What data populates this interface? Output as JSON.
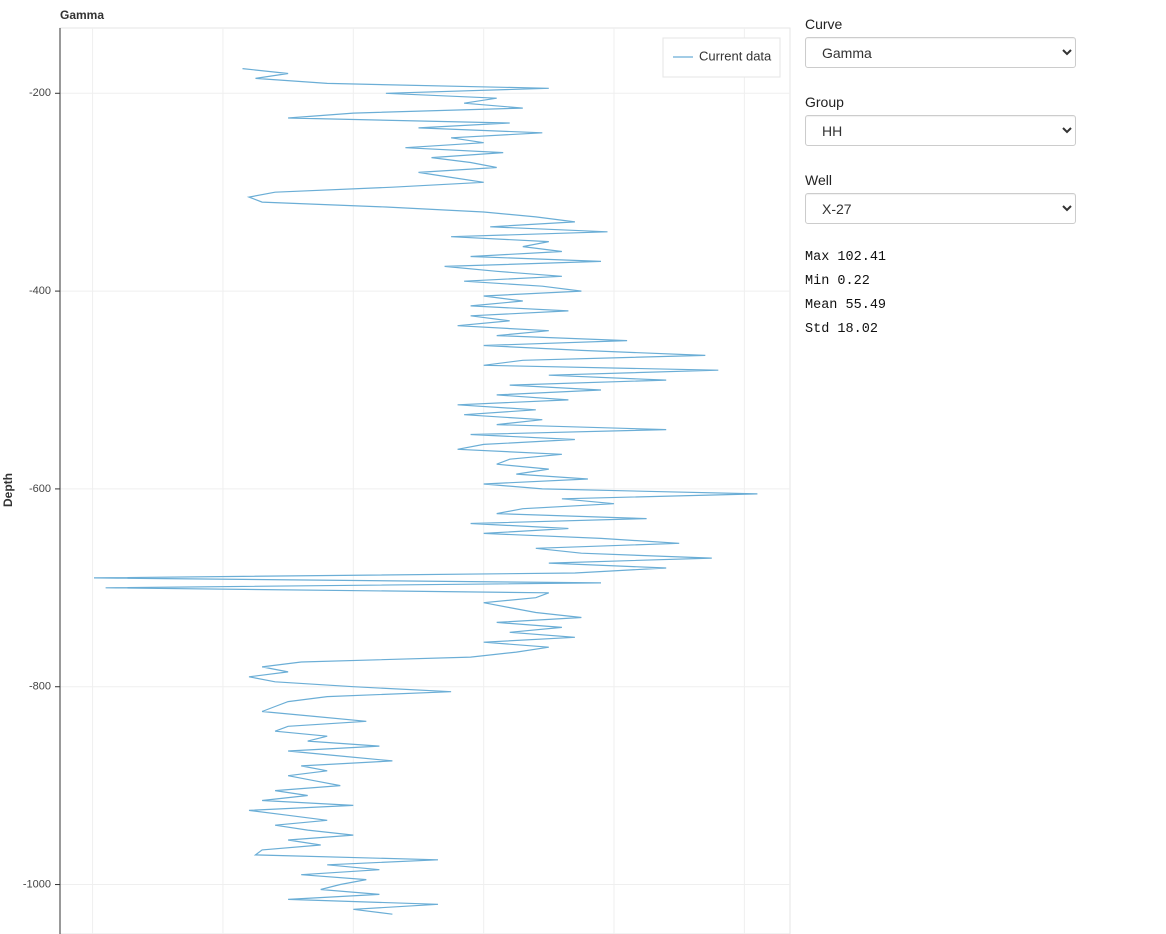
{
  "chart_data": {
    "type": "line",
    "title": "Gamma",
    "ylabel": "Depth",
    "xlim": [
      -5,
      107
    ],
    "xticks": [
      0,
      20,
      40,
      60,
      80,
      100
    ],
    "ylim": [
      -1050,
      -134
    ],
    "yticks": [
      -200,
      -400,
      -600,
      -800,
      -1000
    ],
    "grid": true,
    "legend": "upper right",
    "y": [
      -175,
      -180,
      -185,
      -190,
      -195,
      -200,
      -205,
      -210,
      -215,
      -220,
      -225,
      -230,
      -235,
      -240,
      -245,
      -250,
      -255,
      -260,
      -265,
      -270,
      -275,
      -280,
      -285,
      -290,
      -295,
      -300,
      -305,
      -310,
      -315,
      -320,
      -325,
      -330,
      -335,
      -340,
      -345,
      -350,
      -355,
      -360,
      -365,
      -370,
      -375,
      -380,
      -385,
      -390,
      -395,
      -400,
      -405,
      -410,
      -415,
      -420,
      -425,
      -430,
      -435,
      -440,
      -445,
      -450,
      -455,
      -460,
      -465,
      -470,
      -475,
      -480,
      -485,
      -490,
      -495,
      -500,
      -505,
      -510,
      -515,
      -520,
      -525,
      -530,
      -535,
      -540,
      -545,
      -550,
      -555,
      -560,
      -565,
      -570,
      -575,
      -580,
      -585,
      -590,
      -595,
      -600,
      -605,
      -610,
      -615,
      -620,
      -625,
      -630,
      -635,
      -640,
      -645,
      -650,
      -655,
      -660,
      -665,
      -670,
      -675,
      -680,
      -685,
      -690,
      -695,
      -700,
      -705,
      -710,
      -715,
      -720,
      -725,
      -730,
      -735,
      -740,
      -745,
      -750,
      -755,
      -760,
      -765,
      -770,
      -775,
      -780,
      -785,
      -790,
      -795,
      -800,
      -805,
      -810,
      -815,
      -820,
      -825,
      -830,
      -835,
      -840,
      -845,
      -850,
      -855,
      -860,
      -865,
      -870,
      -875,
      -880,
      -885,
      -890,
      -895,
      -900,
      -905,
      -910,
      -915,
      -920,
      -925,
      -930,
      -935,
      -940,
      -945,
      -950,
      -955,
      -960,
      -965,
      -970,
      -975,
      -980,
      -985,
      -990,
      -995,
      -1000,
      -1005,
      -1010,
      -1015,
      -1020,
      -1025,
      -1030
    ],
    "series": [
      {
        "name": "Current data",
        "color": "#6baed6",
        "values": [
          23,
          30,
          25,
          36,
          70,
          45,
          62,
          57,
          66,
          40,
          30,
          64,
          50,
          69,
          55,
          60,
          48,
          63,
          52,
          58,
          62,
          50,
          55,
          60,
          46,
          28,
          24,
          26,
          45,
          60,
          68,
          74,
          61,
          79,
          55,
          70,
          66,
          72,
          58,
          78,
          54,
          62,
          72,
          57,
          69,
          75,
          60,
          66,
          58,
          73,
          58,
          64,
          56,
          70,
          62,
          82,
          60,
          75,
          94,
          66,
          60,
          96,
          70,
          88,
          64,
          78,
          62,
          73,
          56,
          68,
          57,
          69,
          62,
          88,
          58,
          74,
          60,
          56,
          72,
          64,
          62,
          70,
          65,
          76,
          60,
          69,
          102,
          72,
          80,
          66,
          62,
          85,
          58,
          73,
          60,
          78,
          90,
          68,
          75,
          95,
          70,
          88,
          74,
          0.22,
          78,
          2,
          70,
          68,
          60,
          64,
          68,
          75,
          62,
          72,
          64,
          74,
          60,
          70,
          65,
          58,
          32,
          26,
          30,
          24,
          28,
          40,
          55,
          36,
          30,
          28,
          26,
          34,
          42,
          30,
          28,
          36,
          33,
          44,
          30,
          38,
          46,
          32,
          36,
          30,
          34,
          38,
          28,
          33,
          26,
          40,
          24,
          30,
          36,
          28,
          33,
          40,
          30,
          35,
          26,
          25,
          53,
          36,
          44,
          32,
          42,
          38,
          35,
          44,
          30,
          53,
          40,
          46
        ]
      }
    ]
  },
  "controls": [
    {
      "label": "Curve",
      "value": "Gamma"
    },
    {
      "label": "Group",
      "value": "HH"
    },
    {
      "label": "Well",
      "value": "X-27"
    }
  ],
  "stats": [
    {
      "label": "Max",
      "value": 102.41
    },
    {
      "label": "Min",
      "value": 0.22
    },
    {
      "label": "Mean",
      "value": 55.49
    },
    {
      "label": "Std",
      "value": 18.02
    }
  ]
}
